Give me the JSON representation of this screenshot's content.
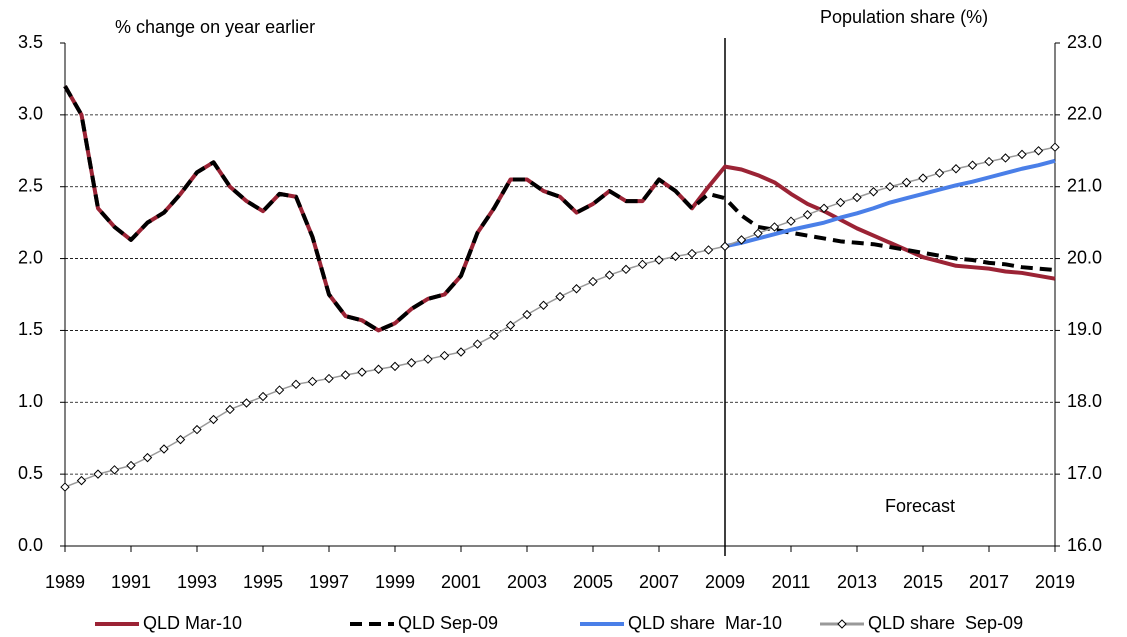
{
  "chart_data": {
    "type": "line",
    "y_label": "% change on year earlier",
    "y2_label": "Population share (%)",
    "annotations": [
      {
        "text": "Forecast",
        "x": 2009
      }
    ],
    "xlim": [
      1989,
      2019
    ],
    "xticks": [
      1989,
      1991,
      1993,
      1995,
      1997,
      1999,
      2001,
      2003,
      2005,
      2007,
      2009,
      2011,
      2013,
      2015,
      2017,
      2019
    ],
    "ylim": [
      0,
      3.5
    ],
    "yticks": [
      {
        "value": 0,
        "label": "0.0"
      },
      0.5,
      {
        "value": 1,
        "label": "1.0"
      },
      1.5,
      {
        "value": 2,
        "label": "2.0"
      },
      2.5,
      {
        "value": 3,
        "label": "3.0"
      },
      3.5
    ],
    "y2lim": [
      16,
      23
    ],
    "y2ticks": [
      {
        "value": 16,
        "label": "16.0"
      },
      {
        "value": 17,
        "label": "17.0"
      },
      {
        "value": 18,
        "label": "18.0"
      },
      {
        "value": 19,
        "label": "19.0"
      },
      {
        "value": 20,
        "label": "20.0"
      },
      {
        "value": 21,
        "label": "21.0"
      },
      {
        "value": 22,
        "label": "22.0"
      },
      {
        "value": 23,
        "label": "23.0"
      }
    ],
    "grid": true,
    "legend": "bottom",
    "x": [
      1989,
      1989.5,
      1990,
      1990.5,
      1991,
      1991.5,
      1992,
      1992.5,
      1993,
      1993.5,
      1994,
      1994.5,
      1995,
      1995.5,
      1996,
      1996.5,
      1997,
      1997.5,
      1998,
      1998.5,
      1999,
      1999.5,
      2000,
      2000.5,
      2001,
      2001.5,
      2002,
      2002.5,
      2003,
      2003.5,
      2004,
      2004.5,
      2005,
      2005.5,
      2006,
      2006.5,
      2007,
      2007.5,
      2008,
      2008.5,
      2009,
      2009.5,
      2010,
      2010.5,
      2011,
      2011.5,
      2012,
      2012.5,
      2013,
      2013.5,
      2014,
      2014.5,
      2015,
      2015.5,
      2016,
      2016.5,
      2017,
      2017.5,
      2018,
      2018.5,
      2019
    ],
    "series": [
      {
        "name": "QLD Mar-10",
        "color": "#9b2335",
        "dash": false,
        "marker": false,
        "values": [
          3.2,
          3.0,
          2.35,
          2.22,
          2.13,
          2.25,
          2.32,
          2.45,
          2.6,
          2.67,
          2.5,
          2.4,
          2.33,
          2.45,
          2.43,
          2.15,
          1.75,
          1.6,
          1.57,
          1.5,
          1.55,
          1.65,
          1.72,
          1.75,
          1.88,
          2.18,
          2.35,
          2.55,
          2.55,
          2.47,
          2.43,
          2.32,
          2.38,
          2.47,
          2.4,
          2.4,
          2.55,
          2.47,
          2.35,
          2.5,
          2.64,
          2.62,
          2.58,
          2.53,
          2.45,
          2.38,
          2.33,
          2.27,
          2.21,
          2.16,
          2.11,
          2.06,
          2.01,
          1.98,
          1.95,
          1.94,
          1.93,
          1.91,
          1.9,
          1.88,
          1.86
        ]
      },
      {
        "name": "QLD Sep-09",
        "color": "#000000",
        "dash": true,
        "marker": false,
        "values": [
          3.2,
          3.0,
          2.35,
          2.22,
          2.13,
          2.25,
          2.32,
          2.45,
          2.6,
          2.67,
          2.5,
          2.4,
          2.33,
          2.45,
          2.43,
          2.15,
          1.75,
          1.6,
          1.57,
          1.5,
          1.55,
          1.65,
          1.72,
          1.75,
          1.88,
          2.18,
          2.35,
          2.55,
          2.55,
          2.47,
          2.43,
          2.32,
          2.38,
          2.47,
          2.4,
          2.4,
          2.55,
          2.47,
          2.35,
          2.45,
          2.42,
          2.3,
          2.22,
          2.2,
          2.18,
          2.16,
          2.14,
          2.12,
          2.11,
          2.1,
          2.08,
          2.06,
          2.04,
          2.02,
          2.0,
          1.99,
          1.97,
          1.96,
          1.94,
          1.93,
          1.92
        ]
      },
      {
        "name": "QLD share  Mar-10",
        "color": "#4a7fe8",
        "dash": false,
        "marker": false,
        "axis": "y2",
        "values": [
          null,
          null,
          null,
          null,
          null,
          null,
          null,
          null,
          null,
          null,
          null,
          null,
          null,
          null,
          null,
          null,
          null,
          null,
          null,
          null,
          null,
          null,
          null,
          null,
          null,
          null,
          null,
          null,
          null,
          null,
          null,
          null,
          null,
          null,
          null,
          null,
          null,
          null,
          null,
          null,
          20.17,
          20.22,
          20.28,
          20.34,
          20.4,
          20.45,
          20.5,
          20.57,
          20.63,
          20.7,
          20.78,
          20.84,
          20.9,
          20.96,
          21.02,
          21.07,
          21.13,
          21.19,
          21.25,
          21.3,
          21.36
        ]
      },
      {
        "name": "QLD share  Sep-09",
        "color": "#999999",
        "dash": false,
        "marker": true,
        "axis": "y2",
        "values": [
          16.82,
          16.91,
          17.0,
          17.06,
          17.12,
          17.23,
          17.35,
          17.48,
          17.62,
          17.76,
          17.9,
          17.99,
          18.08,
          18.17,
          18.25,
          18.29,
          18.33,
          18.38,
          18.42,
          18.46,
          18.5,
          18.55,
          18.6,
          18.65,
          18.7,
          18.81,
          18.93,
          19.07,
          19.22,
          19.35,
          19.47,
          19.58,
          19.68,
          19.77,
          19.85,
          19.92,
          19.98,
          20.03,
          20.07,
          20.12,
          20.17,
          20.26,
          20.35,
          20.44,
          20.52,
          20.61,
          20.7,
          20.78,
          20.85,
          20.93,
          21.0,
          21.06,
          21.12,
          21.19,
          21.25,
          21.3,
          21.35,
          21.4,
          21.45,
          21.5,
          21.55
        ]
      }
    ]
  }
}
